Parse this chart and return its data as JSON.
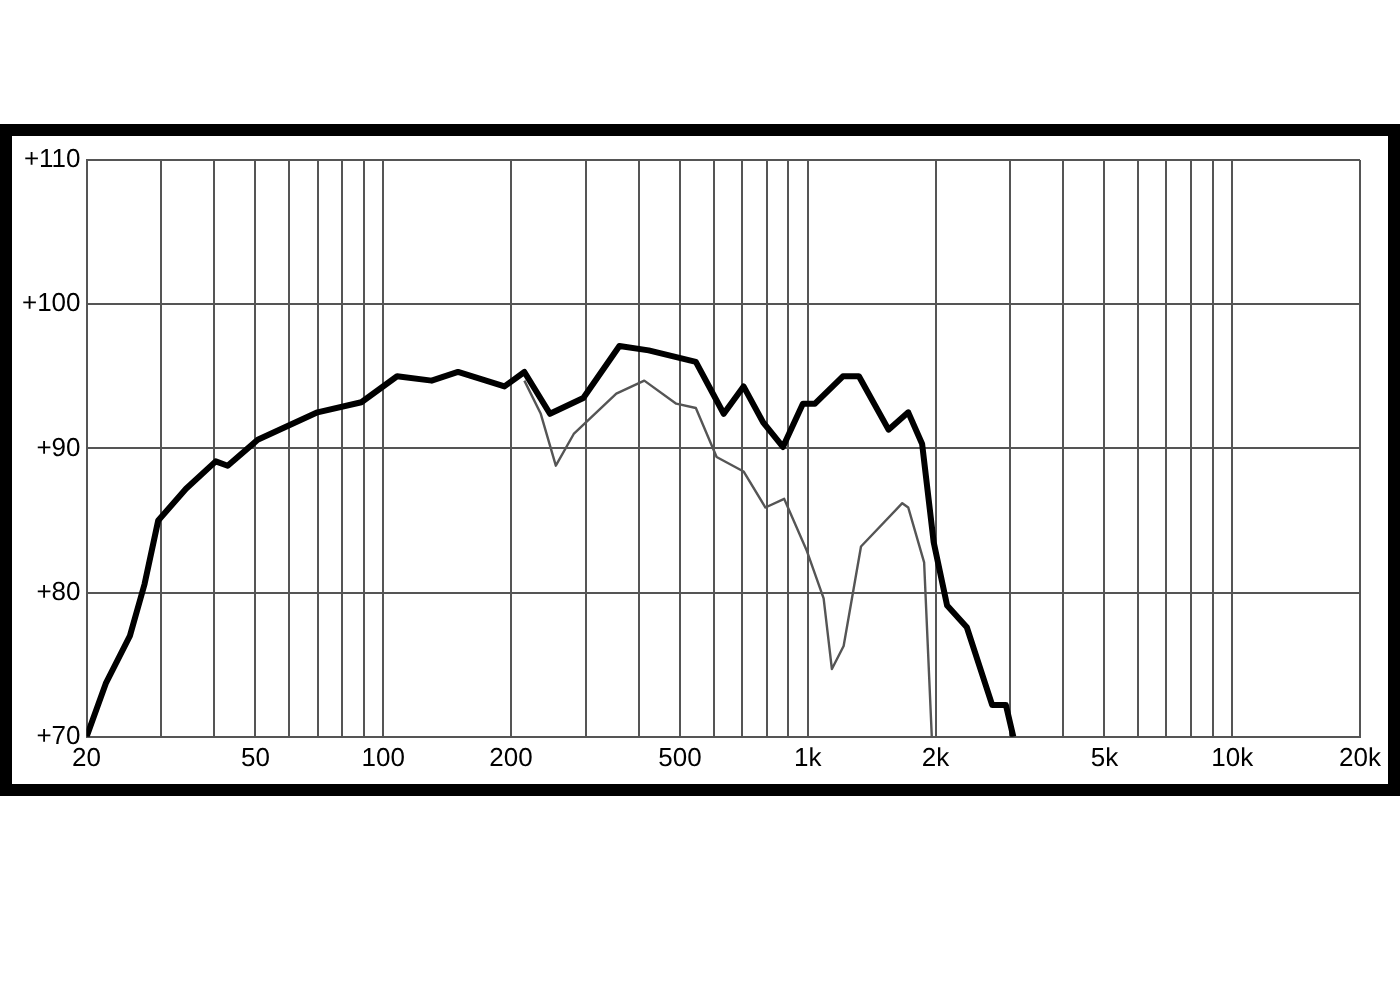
{
  "chart_data": {
    "type": "line",
    "log": "x",
    "grid": true,
    "legend": false,
    "marker": "none",
    "line_style": "solid",
    "xlim": [
      20,
      20000
    ],
    "xticks": [
      20,
      {
        "value": 30,
        "label": null
      },
      {
        "value": 40,
        "label": null
      },
      50,
      {
        "value": 60,
        "label": null
      },
      {
        "value": 70,
        "label": null
      },
      {
        "value": 80,
        "label": null
      },
      {
        "value": 90,
        "label": null
      },
      100,
      200,
      {
        "value": 300,
        "label": null
      },
      {
        "value": 400,
        "label": null
      },
      500,
      {
        "value": 600,
        "label": null
      },
      {
        "value": 700,
        "label": null
      },
      {
        "value": 800,
        "label": null
      },
      {
        "value": 900,
        "label": null
      },
      {
        "value": 1000,
        "label": "1k"
      },
      {
        "value": 2000,
        "label": "2k"
      },
      {
        "value": 3000,
        "label": null
      },
      {
        "value": 4000,
        "label": null
      },
      {
        "value": 5000,
        "label": "5k"
      },
      {
        "value": 6000,
        "label": null
      },
      {
        "value": 7000,
        "label": null
      },
      {
        "value": 8000,
        "label": null
      },
      {
        "value": 9000,
        "label": null
      },
      {
        "value": 10000,
        "label": "10k"
      },
      {
        "value": 20000,
        "label": "20k"
      }
    ],
    "ylim": [
      70,
      110
    ],
    "yticks": [
      {
        "value": 70,
        "label": "+70"
      },
      {
        "value": 80,
        "label": "+80"
      },
      {
        "value": 90,
        "label": "+90"
      },
      {
        "value": 100,
        "label": "+100"
      },
      {
        "value": 110,
        "label": "+110"
      }
    ],
    "series": [
      {
        "color": "#000000",
        "x": [
          20,
          22.2,
          25.3,
          27.4,
          29.5,
          34.3,
          40.3,
          43,
          50.6,
          70,
          88.8,
          107.8,
          130,
          150,
          193,
          215,
          247,
          296,
          360,
          422,
          545,
          634,
          706,
          785,
          874,
          974,
          1040,
          1210,
          1320,
          1550,
          1725,
          1860,
          1980,
          2130,
          2370,
          2720,
          2930,
          3050
        ],
        "values": [
          70,
          73.7,
          77,
          80.6,
          85,
          87.2,
          89.1,
          88.8,
          90.6,
          92.5,
          93.2,
          95,
          94.7,
          95.3,
          94.3,
          95.3,
          92.4,
          93.5,
          97.1,
          96.8,
          96,
          92.4,
          94.3,
          91.8,
          90.1,
          93.1,
          93.1,
          95,
          95,
          91.3,
          92.5,
          90.3,
          83.5,
          79.1,
          77.6,
          72.2,
          72.2,
          70
        ]
      },
      {
        "color": "#555555",
        "x": [
          215,
          235,
          255,
          281,
          354,
          412,
          490,
          545,
          610,
          706,
          795,
          880,
          995,
          1090,
          1140,
          1215,
          1335,
          1670,
          1725,
          1880,
          1960
        ],
        "values": [
          94.7,
          92.4,
          88.8,
          91,
          93.8,
          94.7,
          93.1,
          92.8,
          89.4,
          88.4,
          85.9,
          86.5,
          82.9,
          79.6,
          74.7,
          76.3,
          83.2,
          86.2,
          85.9,
          82.1,
          70
        ]
      }
    ]
  }
}
